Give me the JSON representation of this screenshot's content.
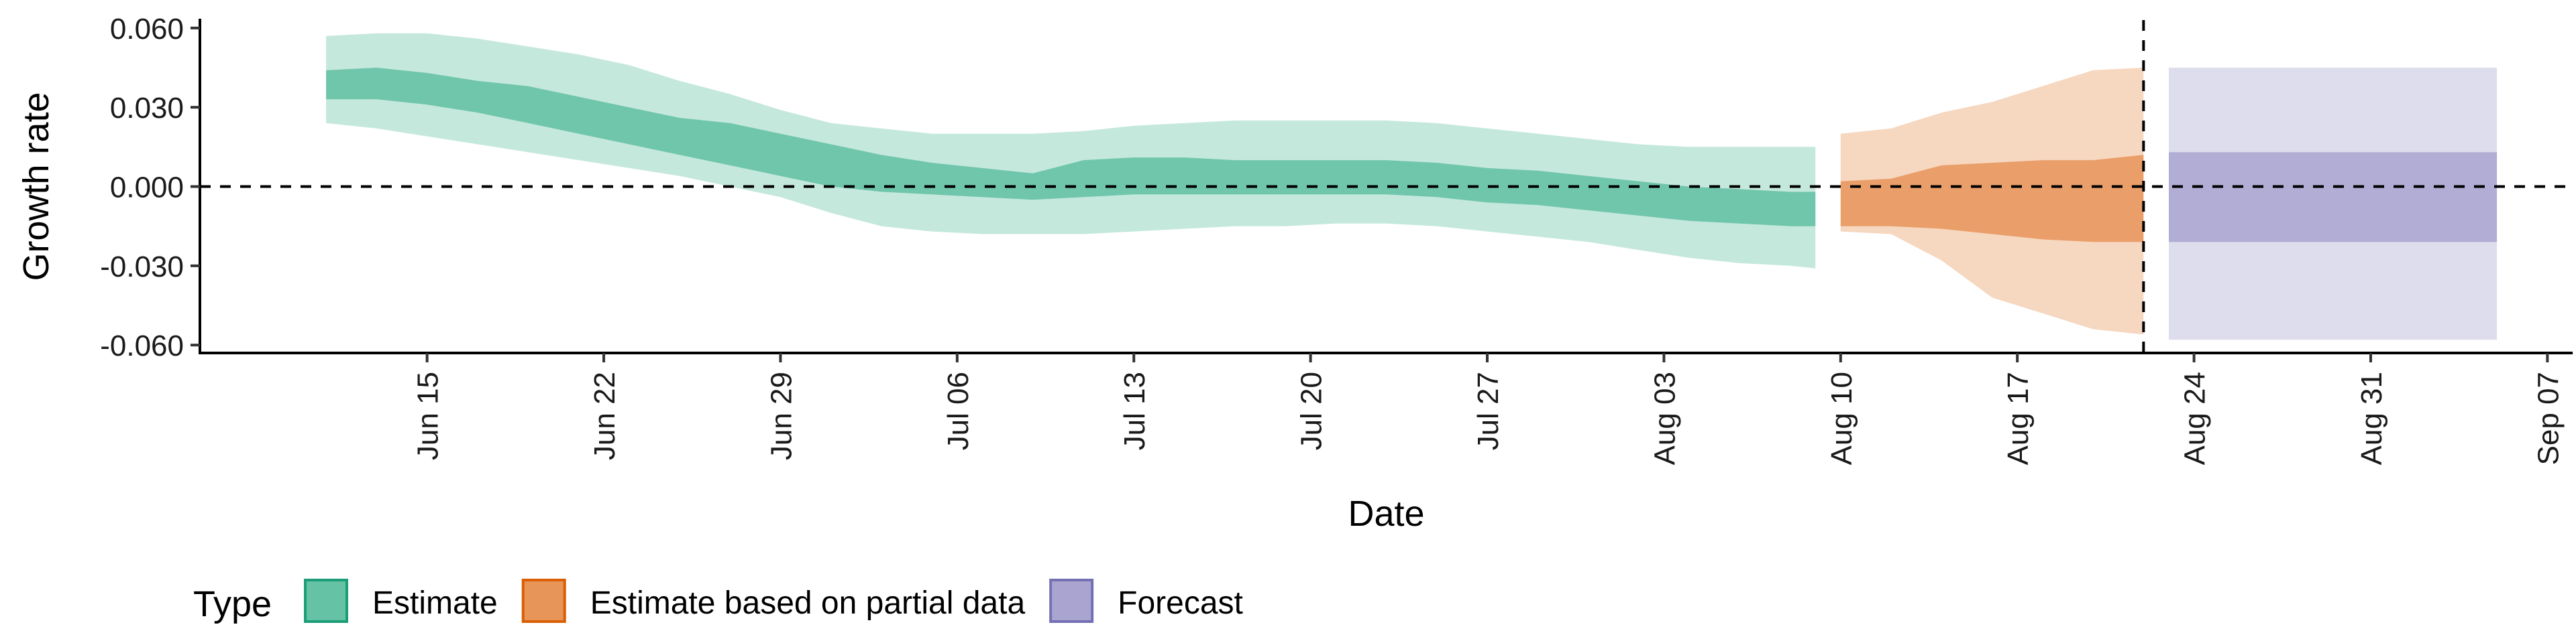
{
  "chart_data": {
    "type": "area",
    "title": "",
    "xlabel": "Date",
    "ylabel": "Growth rate",
    "ylim": [
      -0.063,
      0.063
    ],
    "y_ticks": [
      "0.060",
      "0.030",
      "0.000",
      "-0.030",
      "-0.060"
    ],
    "y_tick_values": [
      0.06,
      0.03,
      0.0,
      -0.03,
      -0.06
    ],
    "x_range": [
      "2020-06-06",
      "2020-09-08"
    ],
    "x_ticks": [
      {
        "date": "2020-06-15",
        "label": "Jun 15"
      },
      {
        "date": "2020-06-22",
        "label": "Jun 22"
      },
      {
        "date": "2020-06-29",
        "label": "Jun 29"
      },
      {
        "date": "2020-07-06",
        "label": "Jul 06"
      },
      {
        "date": "2020-07-13",
        "label": "Jul 13"
      },
      {
        "date": "2020-07-20",
        "label": "Jul 20"
      },
      {
        "date": "2020-07-27",
        "label": "Jul 27"
      },
      {
        "date": "2020-08-03",
        "label": "Aug 03"
      },
      {
        "date": "2020-08-10",
        "label": "Aug 10"
      },
      {
        "date": "2020-08-17",
        "label": "Aug 17"
      },
      {
        "date": "2020-08-24",
        "label": "Aug 24"
      },
      {
        "date": "2020-08-31",
        "label": "Aug 31"
      },
      {
        "date": "2020-09-07",
        "label": "Sep 07"
      }
    ],
    "reference_lines": {
      "horizontal_y": 0.0,
      "vertical_date": "2020-08-22"
    },
    "grid": false,
    "legend": {
      "title": "Type",
      "placement": "bottom",
      "items": [
        {
          "label": "Estimate",
          "color": "#1b9e77",
          "fill": "#66c2a5"
        },
        {
          "label": "Estimate based on partial data",
          "color": "#d95f02",
          "fill": "#e8955a"
        },
        {
          "label": "Forecast",
          "color": "#7570b3",
          "fill": "#a9a5d0"
        }
      ]
    },
    "series": [
      {
        "name": "Estimate",
        "inner_alpha": 0.9,
        "outer_alpha": 0.38,
        "dates": [
          "2020-06-11",
          "2020-06-13",
          "2020-06-15",
          "2020-06-17",
          "2020-06-19",
          "2020-06-21",
          "2020-06-23",
          "2020-06-25",
          "2020-06-27",
          "2020-06-29",
          "2020-07-01",
          "2020-07-03",
          "2020-07-05",
          "2020-07-07",
          "2020-07-09",
          "2020-07-11",
          "2020-07-13",
          "2020-07-15",
          "2020-07-17",
          "2020-07-19",
          "2020-07-21",
          "2020-07-23",
          "2020-07-25",
          "2020-07-27",
          "2020-07-29",
          "2020-07-31",
          "2020-08-02",
          "2020-08-04",
          "2020-08-06",
          "2020-08-08",
          "2020-08-09"
        ],
        "inner_upper": [
          0.044,
          0.045,
          0.043,
          0.04,
          0.038,
          0.034,
          0.03,
          0.026,
          0.024,
          0.02,
          0.016,
          0.012,
          0.009,
          0.007,
          0.005,
          0.01,
          0.011,
          0.011,
          0.01,
          0.01,
          0.01,
          0.01,
          0.009,
          0.007,
          0.006,
          0.004,
          0.002,
          0.0,
          -0.001,
          -0.002,
          -0.002
        ],
        "inner_lower": [
          0.033,
          0.033,
          0.031,
          0.028,
          0.024,
          0.02,
          0.016,
          0.012,
          0.008,
          0.004,
          0.0,
          -0.002,
          -0.003,
          -0.004,
          -0.005,
          -0.004,
          -0.003,
          -0.003,
          -0.003,
          -0.003,
          -0.003,
          -0.003,
          -0.004,
          -0.006,
          -0.007,
          -0.009,
          -0.011,
          -0.013,
          -0.014,
          -0.015,
          -0.015
        ],
        "outer_upper": [
          0.057,
          0.058,
          0.058,
          0.056,
          0.053,
          0.05,
          0.046,
          0.04,
          0.035,
          0.029,
          0.024,
          0.022,
          0.02,
          0.02,
          0.02,
          0.021,
          0.023,
          0.024,
          0.025,
          0.025,
          0.025,
          0.025,
          0.024,
          0.022,
          0.02,
          0.018,
          0.016,
          0.015,
          0.015,
          0.015,
          0.015
        ],
        "outer_lower": [
          0.024,
          0.022,
          0.019,
          0.016,
          0.013,
          0.01,
          0.007,
          0.004,
          0.0,
          -0.004,
          -0.01,
          -0.015,
          -0.017,
          -0.018,
          -0.018,
          -0.018,
          -0.017,
          -0.016,
          -0.015,
          -0.015,
          -0.014,
          -0.014,
          -0.015,
          -0.017,
          -0.019,
          -0.021,
          -0.024,
          -0.027,
          -0.029,
          -0.03,
          -0.031
        ]
      },
      {
        "name": "Estimate based on partial data",
        "inner_alpha": 0.85,
        "outer_alpha": 0.38,
        "dates": [
          "2020-08-10",
          "2020-08-12",
          "2020-08-14",
          "2020-08-16",
          "2020-08-18",
          "2020-08-20",
          "2020-08-22"
        ],
        "inner_upper": [
          0.002,
          0.003,
          0.008,
          0.009,
          0.01,
          0.01,
          0.012
        ],
        "inner_lower": [
          -0.015,
          -0.015,
          -0.016,
          -0.018,
          -0.02,
          -0.021,
          -0.021
        ],
        "outer_upper": [
          0.02,
          0.022,
          0.028,
          0.032,
          0.038,
          0.044,
          0.045
        ],
        "outer_lower": [
          -0.017,
          -0.018,
          -0.028,
          -0.042,
          -0.048,
          -0.054,
          -0.056
        ]
      },
      {
        "name": "Forecast",
        "inner_alpha": 0.85,
        "outer_alpha": 0.38,
        "dates": [
          "2020-08-23",
          "2020-09-05"
        ],
        "inner_upper": [
          0.013,
          0.013
        ],
        "inner_lower": [
          -0.021,
          -0.021
        ],
        "outer_upper": [
          0.045,
          0.045
        ],
        "outer_lower": [
          -0.058,
          -0.058
        ]
      }
    ]
  }
}
